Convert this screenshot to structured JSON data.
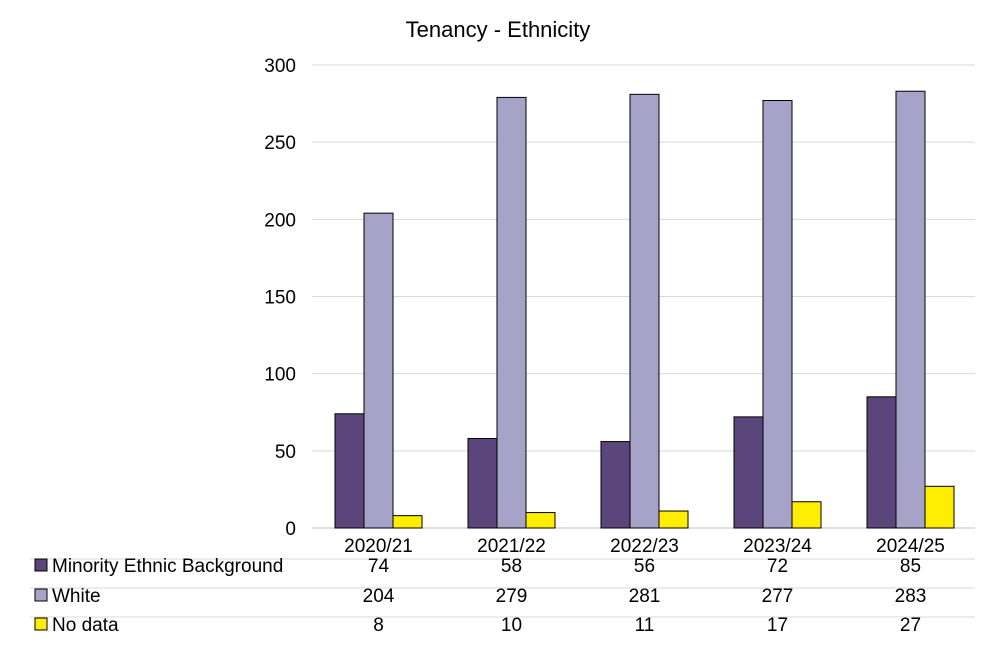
{
  "chart_data": {
    "type": "bar",
    "title": "Tenancy - Ethnicity",
    "categories": [
      "2020/21",
      "2021/22",
      "2022/23",
      "2023/24",
      "2024/25"
    ],
    "series": [
      {
        "name": "Minority Ethnic Background",
        "color": "#5b467c",
        "values": [
          74,
          58,
          56,
          72,
          85
        ]
      },
      {
        "name": "White",
        "color": "#a6a2c8",
        "values": [
          204,
          279,
          281,
          277,
          283
        ]
      },
      {
        "name": "No data",
        "color": "#ffee00",
        "values": [
          8,
          10,
          11,
          17,
          27
        ]
      }
    ],
    "ylim": [
      0,
      300
    ],
    "yticks": [
      0,
      50,
      100,
      150,
      200,
      250,
      300
    ],
    "grid": true,
    "legend": "data-table-left",
    "data_table": true
  }
}
